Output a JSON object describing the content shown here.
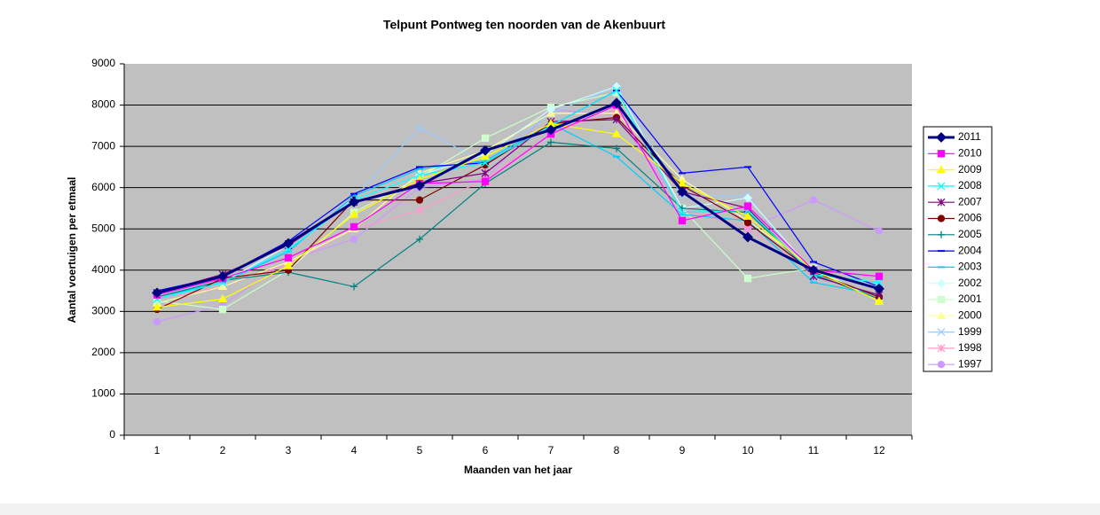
{
  "chart_data": {
    "type": "line",
    "title": "Telpunt Pontweg ten noorden van de Akenbuurt",
    "x_label": "Maanden van het jaar",
    "y_label": "Aantal voertuigen per etmaal",
    "categories": [
      "1",
      "2",
      "3",
      "4",
      "5",
      "6",
      "7",
      "8",
      "9",
      "10",
      "11",
      "12"
    ],
    "ylim": [
      0,
      9000
    ],
    "yticks": [
      0,
      1000,
      2000,
      3000,
      4000,
      5000,
      6000,
      7000,
      8000,
      9000
    ],
    "grid": true,
    "legend": "right",
    "series": [
      {
        "name": "2011",
        "color": "#000080",
        "values": [
          3450,
          3850,
          4650,
          5650,
          6050,
          6900,
          7400,
          8050,
          5900,
          4800,
          4000,
          3550
        ]
      },
      {
        "name": "2010",
        "color": "#ff00ff",
        "values": [
          3400,
          3800,
          4300,
          5050,
          6100,
          6150,
          7300,
          8000,
          5200,
          5550,
          4000,
          3850
        ]
      },
      {
        "name": "2009",
        "color": "#ffff00",
        "values": [
          3100,
          3300,
          4100,
          5350,
          6200,
          6750,
          7550,
          7300,
          6100,
          5300,
          4000,
          3250
        ]
      },
      {
        "name": "2008",
        "color": "#00ffff",
        "values": [
          3300,
          3700,
          4500,
          5700,
          6300,
          6600,
          7500,
          8350,
          5400,
          5450,
          3900,
          3700
        ]
      },
      {
        "name": "2007",
        "color": "#800080",
        "values": [
          3450,
          3900,
          4600,
          5650,
          6100,
          6350,
          7600,
          7650,
          5900,
          5500,
          3850,
          3400
        ]
      },
      {
        "name": "2006",
        "color": "#800000",
        "values": [
          3050,
          3800,
          4000,
          5700,
          5700,
          6550,
          7550,
          7700,
          6050,
          5150,
          3950,
          3350
        ]
      },
      {
        "name": "2005",
        "color": "#008080",
        "values": [
          3350,
          3750,
          3950,
          3600,
          4750,
          6100,
          7100,
          6950,
          5500,
          5400,
          3900,
          3300
        ]
      },
      {
        "name": "2004",
        "color": "#0000ff",
        "values": [
          3500,
          3850,
          4700,
          5850,
          6500,
          6600,
          7500,
          8350,
          6350,
          6500,
          4200,
          3600
        ]
      },
      {
        "name": "2003",
        "color": "#00ccff",
        "values": [
          3350,
          3700,
          4450,
          5800,
          6450,
          6650,
          7550,
          6750,
          5350,
          5200,
          3700,
          3400
        ]
      },
      {
        "name": "2002",
        "color": "#ccffff",
        "values": [
          3350,
          3700,
          4600,
          5700,
          6300,
          6800,
          7900,
          8450,
          5500,
          5750,
          3950,
          3600
        ]
      },
      {
        "name": "2001",
        "color": "#ccffcc",
        "values": [
          3250,
          3050,
          4000,
          5400,
          6250,
          7200,
          7950,
          8300,
          5500,
          3800,
          4050,
          3250
        ]
      },
      {
        "name": "2000",
        "color": "#ffff99",
        "values": [
          3200,
          3600,
          4200,
          5000,
          6350,
          6900,
          7800,
          7800,
          6200,
          5200,
          4050,
          3250
        ]
      },
      {
        "name": "1999",
        "color": "#99ccff",
        "values": [
          3400,
          3750,
          4500,
          5750,
          7450,
          6600,
          7800,
          8450,
          5800,
          5800,
          3800,
          3700
        ]
      },
      {
        "name": "1998",
        "color": "#ff99cc",
        "values": [
          3300,
          3600,
          4150,
          5000,
          5450,
          6200,
          7300,
          7900,
          5500,
          5000,
          3950,
          3350
        ]
      },
      {
        "name": "1997",
        "color": "#cc99ff",
        "values": [
          2750,
          3150,
          4250,
          4750,
          6000,
          6200,
          7900,
          7750,
          5500,
          5000,
          5700,
          4950
        ]
      }
    ]
  }
}
